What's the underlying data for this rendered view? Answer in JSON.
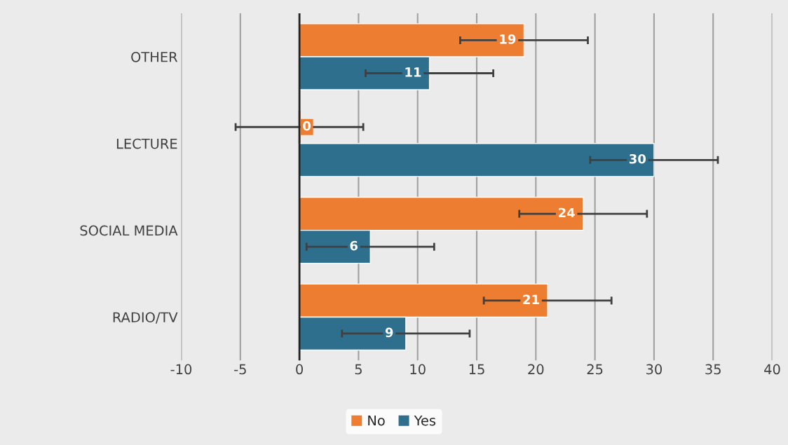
{
  "chart_data": {
    "type": "bar",
    "orientation": "horizontal",
    "categories": [
      "OTHER",
      "LECTURE",
      "SOCIAL MEDIA",
      "RADIO/TV"
    ],
    "series": [
      {
        "name": "No",
        "color": "#ed7d31",
        "values": [
          19,
          0,
          24,
          21
        ],
        "errors": [
          5.4,
          5.4,
          5.4,
          5.4
        ]
      },
      {
        "name": "Yes",
        "color": "#2e6f8e",
        "values": [
          11,
          30,
          6,
          9
        ],
        "errors": [
          5.4,
          5.4,
          5.4,
          5.4
        ]
      }
    ],
    "xlim": [
      -10,
      40
    ],
    "xticks": [
      -10,
      -5,
      0,
      5,
      10,
      15,
      20,
      25,
      30,
      35,
      40
    ],
    "grid": "x",
    "legend": "bottom",
    "data_labels": true
  }
}
